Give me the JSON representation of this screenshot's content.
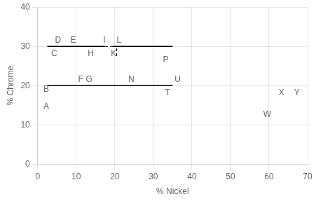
{
  "chart_data": {
    "type": "line",
    "x_label": "% Nickel",
    "y_label": "% Chrome",
    "xlim": [
      0,
      70
    ],
    "ylim": [
      0,
      40
    ],
    "xticks": [
      0,
      10,
      20,
      30,
      40,
      50,
      60,
      70
    ],
    "yticks": [
      0,
      10,
      20,
      30,
      40
    ],
    "grid": true,
    "series": [
      {
        "x": [
          2.5,
          9.5
        ],
        "values": [
          30,
          30
        ],
        "color": "#000000",
        "line_style": "solid"
      },
      {
        "x": [
          9.5,
          17.5
        ],
        "values": [
          30,
          30
        ],
        "color": "#000000",
        "line_style": "solid"
      },
      {
        "x": [
          19.5,
          35.0
        ],
        "values": [
          30,
          30
        ],
        "color": "#000000",
        "line_style": "solid"
      },
      {
        "x": [
          2.5,
          10.5
        ],
        "values": [
          20,
          20
        ],
        "color": "#000000",
        "line_style": "solid"
      },
      {
        "x": [
          10.5,
          23.5
        ],
        "values": [
          20,
          20
        ],
        "color": "#000000",
        "line_style": "solid"
      },
      {
        "x": [
          23.5,
          35.0
        ],
        "values": [
          20,
          20
        ],
        "color": "#000000",
        "line_style": "solid"
      },
      {
        "x": [
          17.5,
          19.5
        ],
        "values": [
          30,
          30
        ],
        "color": "#000000",
        "line_style": "dashed"
      },
      {
        "x": [
          20.5,
          20.5
        ],
        "values": [
          29.5,
          27.5
        ],
        "color": "#000000",
        "line_style": "dashed"
      }
    ],
    "annotations": [
      {
        "text": "A",
        "x": 1.5,
        "y": 13.5
      },
      {
        "text": "B",
        "x": 1.5,
        "y": 18.0
      },
      {
        "text": "C",
        "x": 3.5,
        "y": 27.0
      },
      {
        "text": "D",
        "x": 4.5,
        "y": 30.5
      },
      {
        "text": "E",
        "x": 8.5,
        "y": 30.5
      },
      {
        "text": "F",
        "x": 10.5,
        "y": 20.5
      },
      {
        "text": "G",
        "x": 12.5,
        "y": 20.5
      },
      {
        "text": "H",
        "x": 13.0,
        "y": 27.0
      },
      {
        "text": "I",
        "x": 17.0,
        "y": 30.5
      },
      {
        "text": "K",
        "x": 19.0,
        "y": 27.0
      },
      {
        "text": "L",
        "x": 20.5,
        "y": 30.5
      },
      {
        "text": "N",
        "x": 23.5,
        "y": 20.5
      },
      {
        "text": "P",
        "x": 32.5,
        "y": 25.5
      },
      {
        "text": "T",
        "x": 33.0,
        "y": 17.0
      },
      {
        "text": "U",
        "x": 35.5,
        "y": 20.5
      },
      {
        "text": "W",
        "x": 58.5,
        "y": 11.5
      },
      {
        "text": "X",
        "x": 62.5,
        "y": 17.0
      },
      {
        "text": "Y",
        "x": 66.5,
        "y": 17.0
      }
    ]
  }
}
